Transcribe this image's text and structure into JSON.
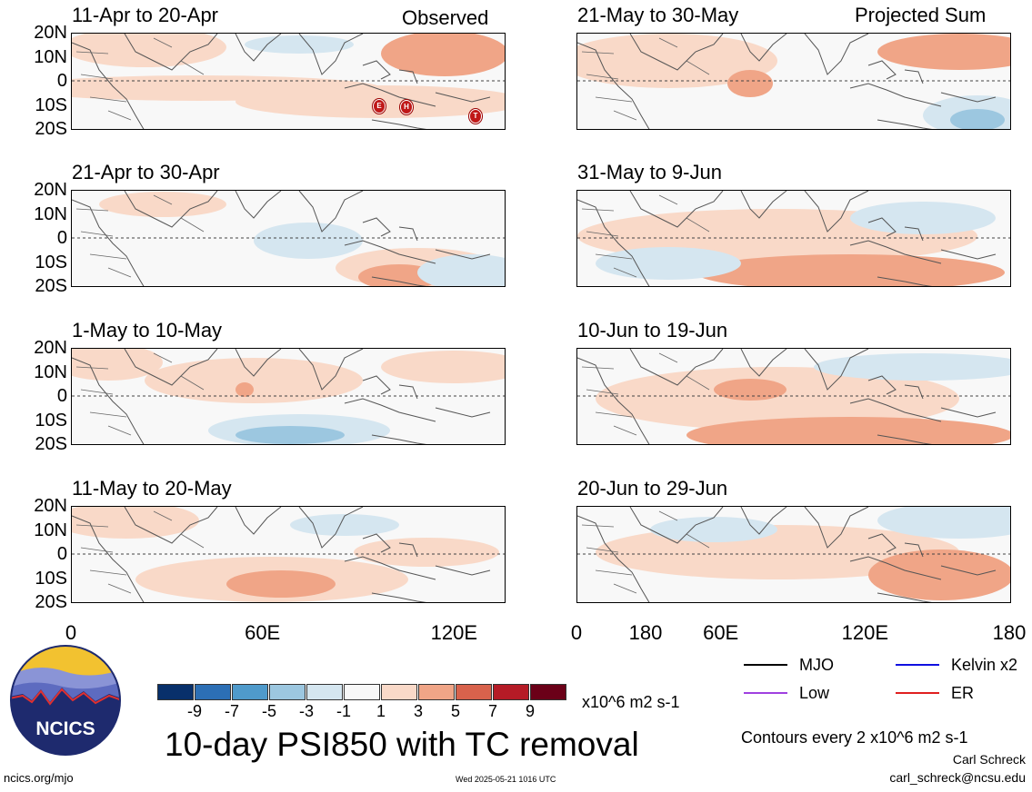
{
  "top_labels": {
    "observed": "Observed",
    "projected": "Projected Sum"
  },
  "panels": [
    {
      "col": 0,
      "row": 0,
      "title": "11-Apr to 20-Apr"
    },
    {
      "col": 0,
      "row": 1,
      "title": "21-Apr to 30-Apr"
    },
    {
      "col": 0,
      "row": 2,
      "title": "1-May to 10-May"
    },
    {
      "col": 0,
      "row": 3,
      "title": "11-May to 20-May"
    },
    {
      "col": 1,
      "row": 0,
      "title": "21-May to 30-May"
    },
    {
      "col": 1,
      "row": 1,
      "title": "31-May to 9-Jun"
    },
    {
      "col": 1,
      "row": 2,
      "title": "10-Jun to 19-Jun"
    },
    {
      "col": 1,
      "row": 3,
      "title": "20-Jun to 29-Jun"
    }
  ],
  "y_ticks": [
    "20N",
    "10N",
    "0",
    "10S",
    "20S"
  ],
  "x_ticks": [
    "0",
    "60E",
    "120E",
    "180"
  ],
  "tc_markers": [
    "E",
    "H",
    "T"
  ],
  "colorbar": {
    "colors": [
      "#08306b",
      "#2c6fb5",
      "#4f9acb",
      "#9cc7e0",
      "#d5e6f0",
      "#f8f8f8",
      "#f9d9c8",
      "#f0a587",
      "#d8624c",
      "#b51b26",
      "#6b0018"
    ],
    "labels": [
      "-9",
      "-7",
      "-5",
      "-3",
      "-1",
      "1",
      "3",
      "5",
      "7",
      "9"
    ],
    "units": "x10^6 m2 s-1"
  },
  "legend": [
    {
      "label": "MJO",
      "color": "#000000"
    },
    {
      "label": "Kelvin x2",
      "color": "#1010e0"
    },
    {
      "label": "Low",
      "color": "#a040e0"
    },
    {
      "label": "ER",
      "color": "#e02020"
    }
  ],
  "main_title": "10-day PSI850 with TC removal",
  "contour_note": "Contours every 2 x10^6 m2 s-1",
  "author": "Carl Schreck",
  "email": "carl_schreck@ncsu.edu",
  "site": "ncics.org/mjo",
  "timestamp": "Wed 2025-05-21 1016 UTC",
  "logo_text": "NCICS"
}
